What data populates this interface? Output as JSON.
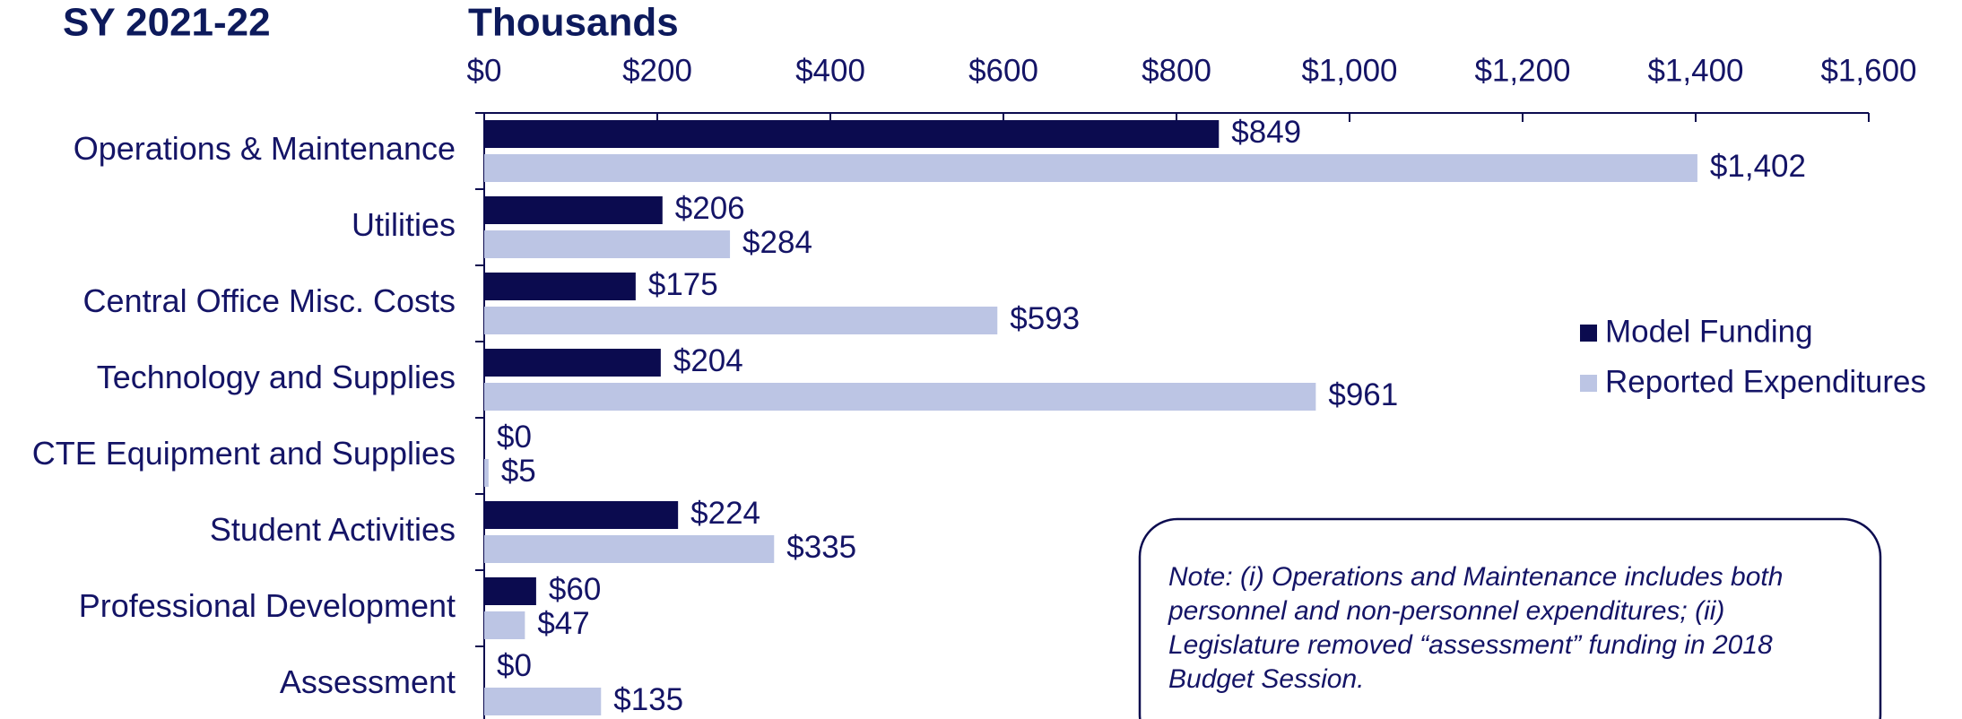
{
  "chart_data": {
    "type": "bar",
    "orientation": "horizontal",
    "title": "SY 2021-22",
    "subtitle": "Thousands",
    "categories": [
      "Operations & Maintenance",
      "Utilities",
      "Central Office Misc. Costs",
      "Technology and Supplies",
      "CTE Equipment and Supplies",
      "Student Activities",
      "Professional Development",
      "Assessment"
    ],
    "series": [
      {
        "name": "Model Funding",
        "color": "#0b0b4f",
        "values": [
          849,
          206,
          175,
          204,
          0,
          224,
          60,
          0
        ],
        "value_labels": [
          "$849",
          "$206",
          "$175",
          "$204",
          "$0",
          "$224",
          "$60",
          "$0"
        ]
      },
      {
        "name": "Reported Expenditures",
        "color": "#bcc5e4",
        "values": [
          1402,
          284,
          593,
          961,
          5,
          335,
          47,
          135
        ],
        "value_labels": [
          "$1,402",
          "$284",
          "$593",
          "$961",
          "$5",
          "$335",
          "$47",
          "$135"
        ]
      }
    ],
    "xlim": [
      0,
      1600
    ],
    "xticks": [
      {
        "value": 0,
        "label": "$0"
      },
      {
        "value": 200,
        "label": "$200"
      },
      {
        "value": 400,
        "label": "$400"
      },
      {
        "value": 600,
        "label": "$600"
      },
      {
        "value": 800,
        "label": "$800"
      },
      {
        "value": 1000,
        "label": "$1,000"
      },
      {
        "value": 1200,
        "label": "$1,200"
      },
      {
        "value": 1400,
        "label": "$1,400"
      },
      {
        "value": 1600,
        "label": "$1,600"
      }
    ],
    "legend": "right",
    "note": [
      "Note: (i) Operations and Maintenance includes both",
      "personnel and non-personnel expenditures; (ii)",
      "Legislature removed “assessment” funding in 2018",
      "Budget Session."
    ]
  }
}
